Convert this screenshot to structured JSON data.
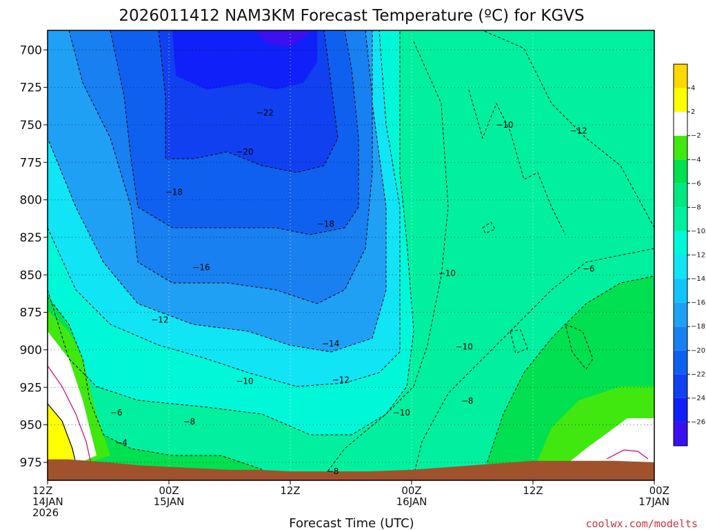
{
  "chart_data": {
    "type": "heatmap",
    "title": "2026011412 NAM3KM Forecast Temperature (ºC) for KGVS",
    "xlabel": "Forecast Time (UTC)",
    "ylabel": "",
    "credit": "coolwx.com/modelts",
    "y_axis": {
      "units": "hPa",
      "range": [
        687,
        987
      ],
      "inverted": true,
      "ticks": [
        700,
        725,
        750,
        775,
        800,
        825,
        850,
        875,
        900,
        925,
        950,
        975
      ]
    },
    "x_axis": {
      "units": "forecast hours",
      "range": [
        0,
        60
      ],
      "ticks": [
        {
          "hour": 0,
          "lines": [
            "12Z",
            "14JAN",
            "2026"
          ]
        },
        {
          "hour": 12,
          "lines": [
            "00Z",
            "15JAN"
          ]
        },
        {
          "hour": 24,
          "lines": [
            "12Z"
          ]
        },
        {
          "hour": 36,
          "lines": [
            "00Z",
            "16JAN"
          ]
        },
        {
          "hour": 48,
          "lines": [
            "12Z"
          ]
        },
        {
          "hour": 60,
          "lines": [
            "00Z",
            "17JAN"
          ]
        }
      ]
    },
    "colorbar": {
      "levels": [
        -28,
        -26,
        -24,
        -22,
        -20,
        -18,
        -16,
        -14,
        -12,
        -10,
        -8,
        -6,
        -4,
        -2,
        2,
        4,
        6
      ],
      "labels": [
        -26,
        -24,
        -22,
        -20,
        -18,
        -16,
        -14,
        -12,
        -10,
        -8,
        -6,
        -4,
        -2,
        2,
        4
      ],
      "colors": [
        "#3a10f0",
        "#1020f8",
        "#1040f0",
        "#1060f0",
        "#1880f0",
        "#20a0f5",
        "#10c4f8",
        "#10e4f5",
        "#00f8d8",
        "#00f0a0",
        "#00e880",
        "#00e050",
        "#40e810",
        "#ffffff",
        "#ffff00",
        "#ffd800"
      ],
      "color_names": [
        "purple-blue",
        "blue",
        "blue",
        "blue",
        "medium-blue",
        "light-blue",
        "sky-blue",
        "cyan",
        "aqua",
        "aqua-green",
        "sea-green",
        "green",
        "lime-green",
        "white",
        "yellow",
        "gold"
      ]
    },
    "contour_labels": [
      {
        "value": "-22",
        "hour": 21.5,
        "p": 742
      },
      {
        "value": "-20",
        "hour": 19.5,
        "p": 768
      },
      {
        "value": "-18",
        "hour": 12.5,
        "p": 795
      },
      {
        "value": "-18",
        "hour": 27.5,
        "p": 816
      },
      {
        "value": "-16",
        "hour": 15.2,
        "p": 845
      },
      {
        "value": "-12",
        "hour": 11.1,
        "p": 880
      },
      {
        "value": "-14",
        "hour": 28.0,
        "p": 896
      },
      {
        "value": "-10",
        "hour": 19.5,
        "p": 921
      },
      {
        "value": "-12",
        "hour": 29.0,
        "p": 920
      },
      {
        "value": "-10",
        "hour": 35.0,
        "p": 942
      },
      {
        "value": "-8",
        "hour": 14.0,
        "p": 948
      },
      {
        "value": "-8",
        "hour": 41.5,
        "p": 934
      },
      {
        "value": "-6",
        "hour": 6.8,
        "p": 942
      },
      {
        "value": "-4",
        "hour": 7.3,
        "p": 962
      },
      {
        "value": "-10",
        "hour": 39.5,
        "p": 849
      },
      {
        "value": "-10",
        "hour": 41.2,
        "p": 898
      },
      {
        "value": "-10",
        "hour": 45.2,
        "p": 750
      },
      {
        "value": "-12",
        "hour": 52.5,
        "p": 754
      },
      {
        "value": "-6",
        "hour": 53.5,
        "p": 846
      },
      {
        "value": "-8",
        "hour": 28.2,
        "p": 981
      }
    ],
    "ground_level_hPa": [
      973,
      973,
      975,
      977,
      978,
      979,
      980,
      980,
      981,
      981,
      981,
      980,
      978,
      976,
      974,
      974,
      974,
      975
    ],
    "ground_hours": [
      0,
      2,
      6,
      9,
      12,
      15,
      18,
      21,
      24,
      28,
      32,
      36,
      40,
      44,
      48,
      52,
      56,
      60
    ],
    "background": "#00f0a0",
    "ground_color": "#a0522d"
  }
}
